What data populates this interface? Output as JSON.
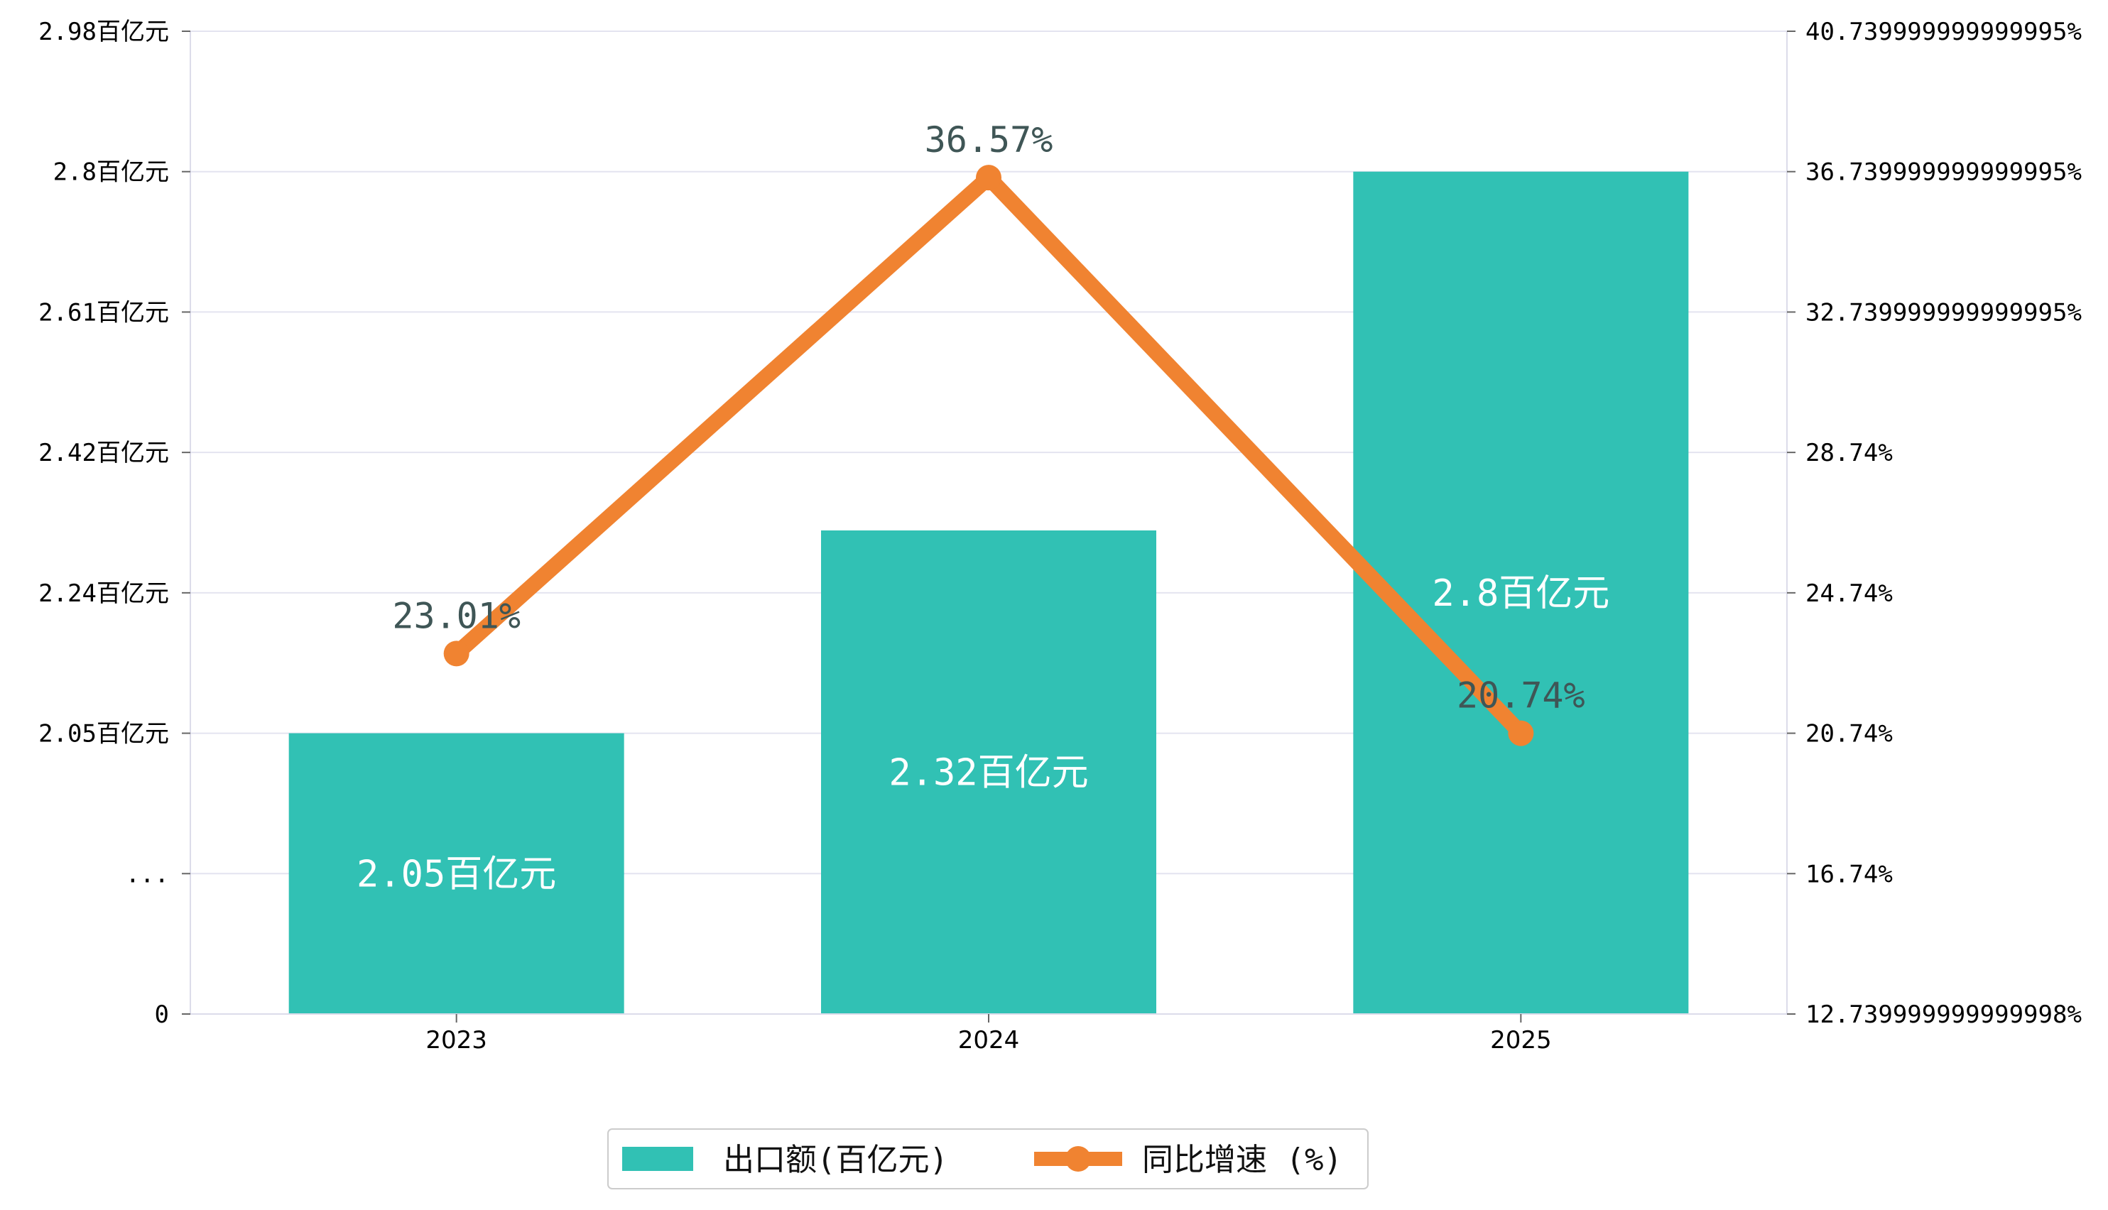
{
  "chart_data": {
    "type": "bar+line",
    "categories": [
      "2023",
      "2024",
      "2025"
    ],
    "series": [
      {
        "name": "出口额(百亿元)",
        "kind": "bar",
        "axis": "left",
        "color": "#31c1b4",
        "values": [
          2.05,
          2.32,
          2.8
        ],
        "data_labels": [
          "2.05百亿元",
          "2.32百亿元",
          "2.8百亿元"
        ]
      },
      {
        "name": "同比增速 (%)",
        "kind": "line",
        "axis": "right",
        "color": "#f08331",
        "values": [
          23.01,
          36.57,
          20.74
        ],
        "data_labels": [
          "23.01%",
          "36.57%",
          "20.74%"
        ]
      }
    ],
    "left_axis": {
      "ticks": [
        {
          "value": 0,
          "label": "0"
        },
        {
          "value": 1.87,
          "label": "..."
        },
        {
          "value": 2.05,
          "label": "2.05百亿元"
        },
        {
          "value": 2.24,
          "label": "2.24百亿元"
        },
        {
          "value": 2.42,
          "label": "2.42百亿元"
        },
        {
          "value": 2.61,
          "label": "2.61百亿元"
        },
        {
          "value": 2.8,
          "label": "2.8百亿元"
        },
        {
          "value": 2.98,
          "label": "2.98百亿元"
        }
      ],
      "broken_below": 2.05,
      "range": [
        0,
        2.98
      ]
    },
    "right_axis": {
      "ticks": [
        {
          "value": 12.74,
          "label": "12.739999999999998%"
        },
        {
          "value": 16.74,
          "label": "16.74%"
        },
        {
          "value": 20.74,
          "label": "20.74%"
        },
        {
          "value": 24.74,
          "label": "24.74%"
        },
        {
          "value": 28.74,
          "label": "28.74%"
        },
        {
          "value": 32.74,
          "label": "32.739999999999995%"
        },
        {
          "value": 36.74,
          "label": "36.739999999999995%"
        },
        {
          "value": 40.74,
          "label": "40.739999999999995%"
        }
      ],
      "range": [
        12.74,
        40.74
      ]
    },
    "grid": true,
    "legend": {
      "position": "bottom-center",
      "items": [
        "出口额(百亿元)",
        "同比增速 (%)"
      ]
    }
  }
}
